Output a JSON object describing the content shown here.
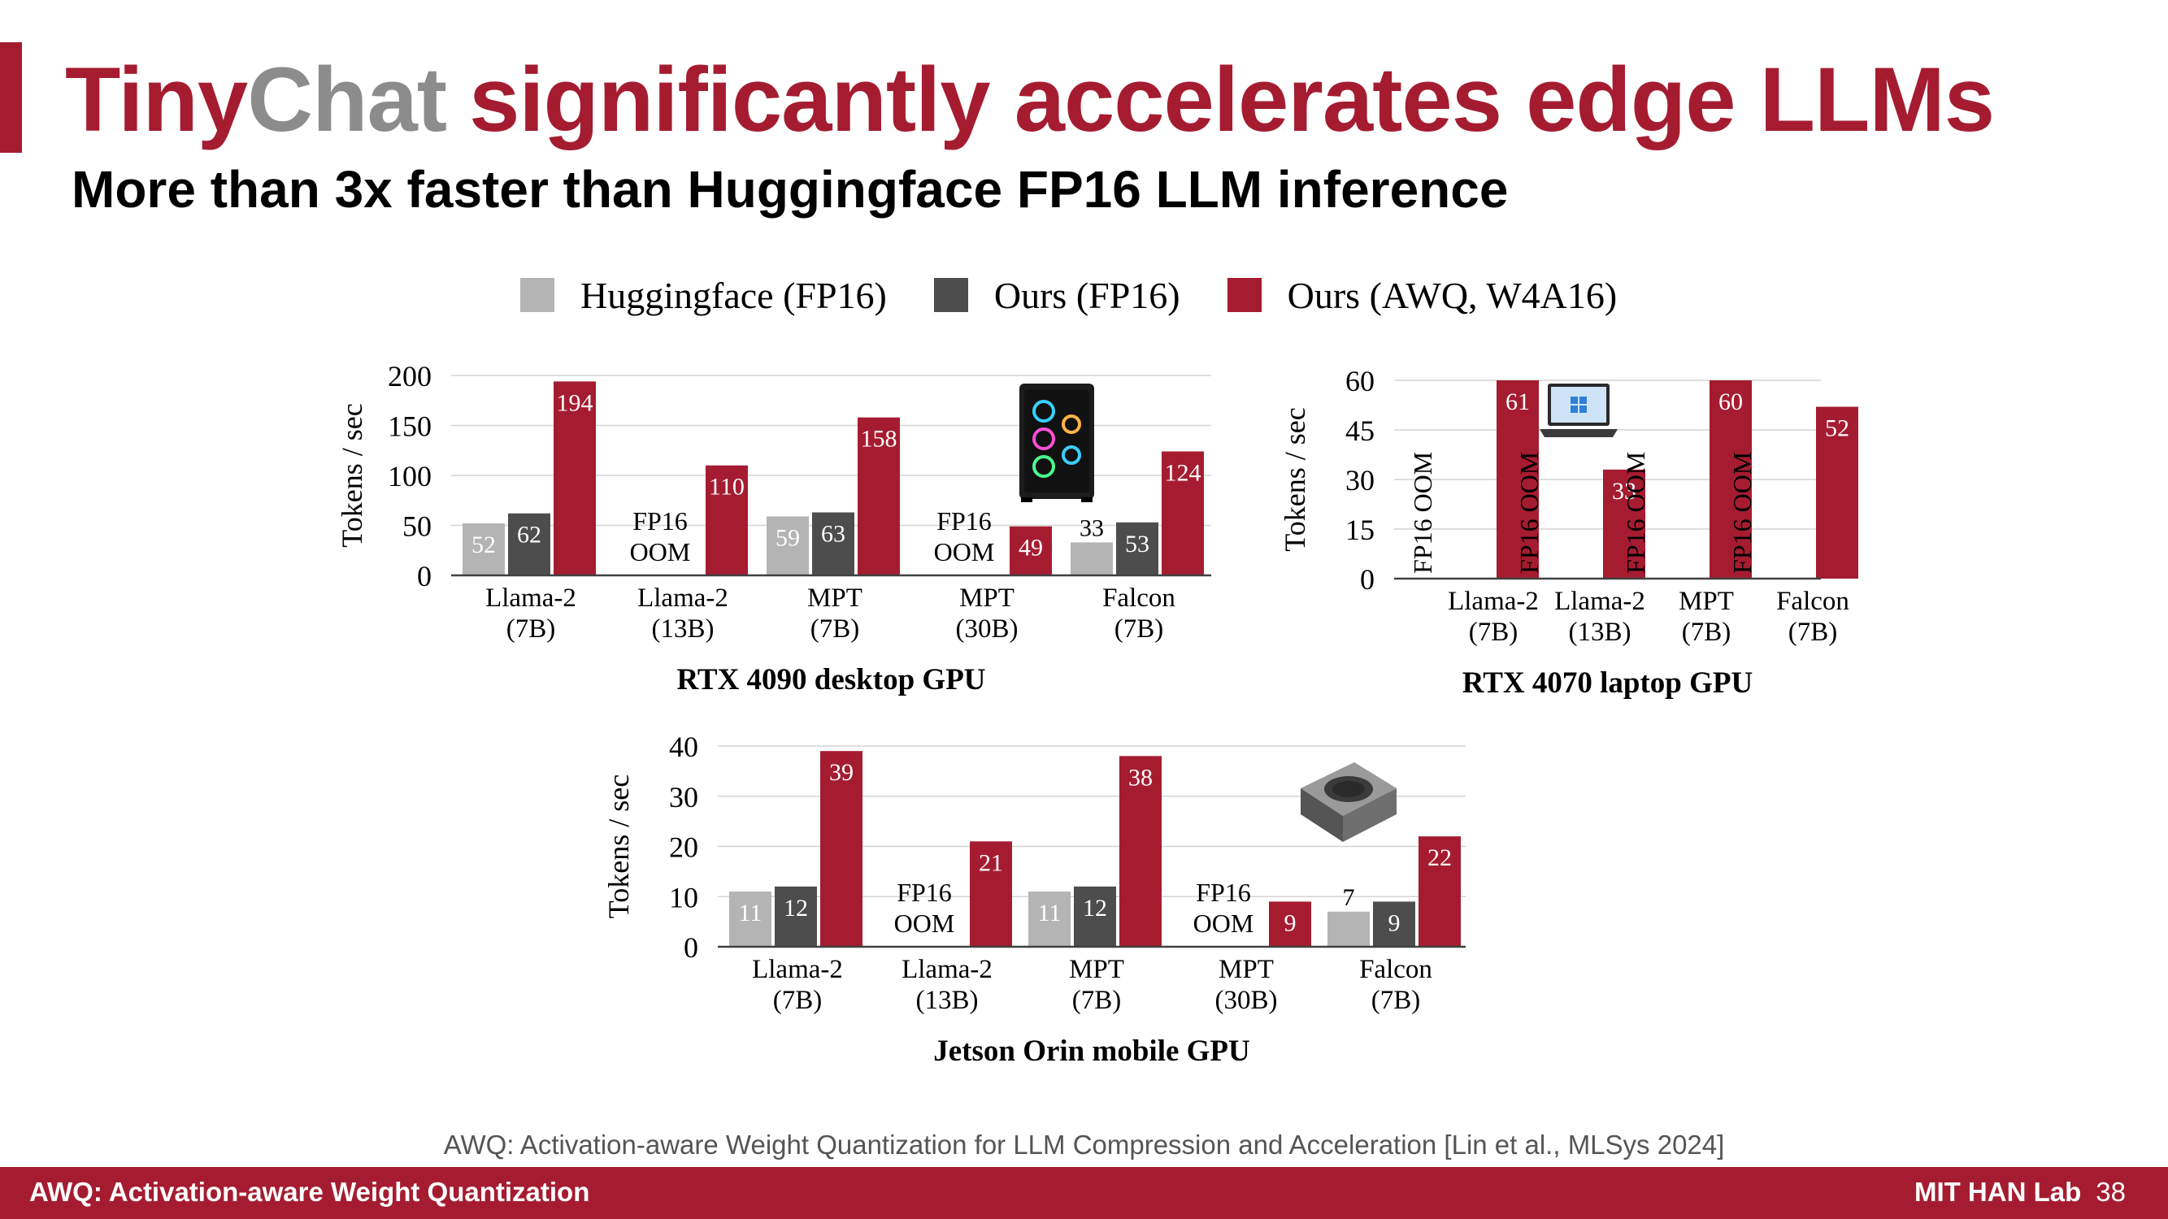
{
  "slide": {
    "title_brand_part1": "Tiny",
    "title_brand_part2": "Chat",
    "title_rest": "significantly accelerates edge LLMs",
    "subtitle": "More than 3x faster than Huggingface FP16 LLM inference",
    "citation": "AWQ: Activation-aware Weight Quantization for LLM Compression and Acceleration  [Lin et al., MLSys 2024]",
    "footer_left": "AWQ: Activation-aware Weight Quantization",
    "footer_right": "MIT HAN Lab",
    "page_number": "38"
  },
  "legend": [
    {
      "label": "Huggingface (FP16)",
      "color": "#b4b4b4"
    },
    {
      "label": "Ours (FP16)",
      "color": "#4d4d4d"
    },
    {
      "label": "Ours (AWQ, W4A16)",
      "color": "#a51c30"
    }
  ],
  "icons": [
    "desktop-pc-icon",
    "laptop-icon",
    "jetson-module-icon"
  ],
  "chart_data": [
    {
      "type": "bar",
      "title": "RTX 4090 desktop GPU",
      "ylabel": "Tokens / sec",
      "xlabel": "",
      "ylim": [
        0,
        200
      ],
      "yticks": [
        0,
        50,
        100,
        150,
        200
      ],
      "grid": true,
      "categories": [
        [
          "Llama-2",
          "(7B)"
        ],
        [
          "Llama-2",
          "(13B)"
        ],
        [
          "MPT",
          "(7B)"
        ],
        [
          "MPT",
          "(30B)"
        ],
        [
          "Falcon",
          "(7B)"
        ]
      ],
      "series": [
        {
          "name": "Huggingface (FP16)",
          "color": "#b4b4b4",
          "values": [
            52,
            null,
            59,
            null,
            33
          ]
        },
        {
          "name": "Ours (FP16)",
          "color": "#4d4d4d",
          "values": [
            62,
            null,
            63,
            null,
            53
          ]
        },
        {
          "name": "Ours (AWQ, W4A16)",
          "color": "#a51c30",
          "values": [
            194,
            110,
            158,
            49,
            124
          ]
        }
      ],
      "oom_note": [
        "FP16",
        "OOM"
      ],
      "oom_style": "horizontal",
      "icon": "desktop-pc-icon"
    },
    {
      "type": "bar",
      "title": "RTX 4070 laptop GPU",
      "ylabel": "Tokens / sec",
      "xlabel": "",
      "ylim": [
        0,
        60
      ],
      "yticks": [
        0,
        15,
        30,
        45,
        60
      ],
      "grid": true,
      "categories": [
        [
          "Llama-2",
          "(7B)"
        ],
        [
          "Llama-2",
          "(13B)"
        ],
        [
          "MPT",
          "(7B)"
        ],
        [
          "Falcon",
          "(7B)"
        ]
      ],
      "series": [
        {
          "name": "Ours (AWQ, W4A16)",
          "color": "#a51c30",
          "values": [
            61,
            33,
            60,
            52
          ]
        }
      ],
      "oom_note": [
        "FP16 OOM"
      ],
      "oom_style": "vertical",
      "icon": "laptop-icon"
    },
    {
      "type": "bar",
      "title": "Jetson Orin mobile GPU",
      "ylabel": "Tokens / sec",
      "xlabel": "",
      "ylim": [
        0,
        40
      ],
      "yticks": [
        0,
        10,
        20,
        30,
        40
      ],
      "grid": true,
      "categories": [
        [
          "Llama-2",
          "(7B)"
        ],
        [
          "Llama-2",
          "(13B)"
        ],
        [
          "MPT",
          "(7B)"
        ],
        [
          "MPT",
          "(30B)"
        ],
        [
          "Falcon",
          "(7B)"
        ]
      ],
      "series": [
        {
          "name": "Huggingface (FP16)",
          "color": "#b4b4b4",
          "values": [
            11,
            null,
            11,
            null,
            7
          ]
        },
        {
          "name": "Ours (FP16)",
          "color": "#4d4d4d",
          "values": [
            12,
            null,
            12,
            null,
            9
          ]
        },
        {
          "name": "Ours (AWQ, W4A16)",
          "color": "#a51c30",
          "values": [
            39,
            21,
            38,
            9,
            22
          ]
        }
      ],
      "oom_note": [
        "FP16",
        "OOM"
      ],
      "oom_style": "horizontal",
      "icon": "jetson-module-icon"
    }
  ]
}
